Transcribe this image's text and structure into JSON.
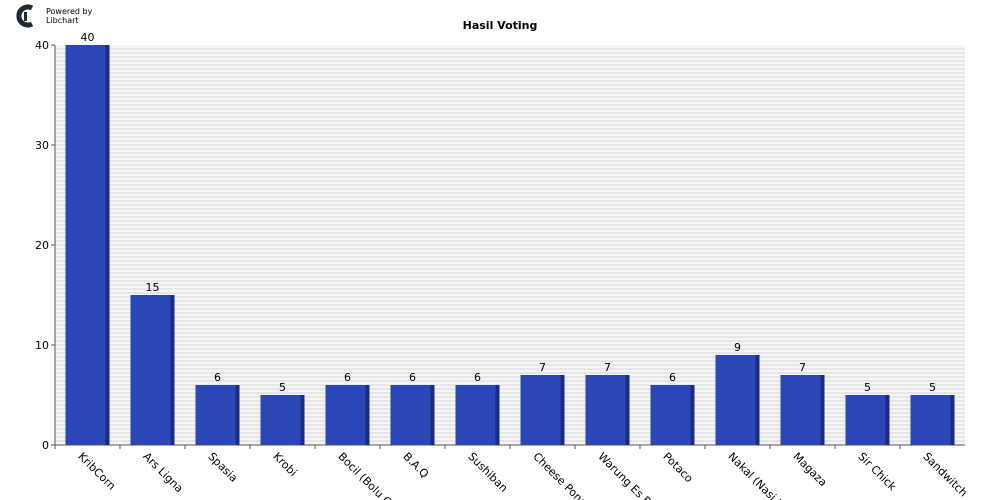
{
  "logo": {
    "line1": "Powered by",
    "line2": "Libchart"
  },
  "colors": {
    "bar": "#2b47b7",
    "bar_side": "#1a2d7d",
    "plot_bg": "#f5f5f5",
    "grid": "#d6d6d6"
  },
  "chart_data": {
    "type": "bar",
    "title": "Hasil Voting",
    "xlabel": "",
    "ylabel": "",
    "ylim": [
      0,
      40
    ],
    "yticks": [
      0,
      10,
      20,
      30,
      40
    ],
    "grid": true,
    "categories": [
      "KribCorn",
      "Ars Ligna",
      "Spasia",
      "Krobi",
      "Bocil (Bolu Co",
      "B.A.Q",
      "Sushiban",
      "Cheese Pong",
      "Warung Es Bu",
      "Potaco",
      "Nakal (Nasi Lo",
      "Magaza",
      "Sir Chick",
      "Sandwitch"
    ],
    "values": [
      40,
      15,
      6,
      5,
      6,
      6,
      6,
      7,
      7,
      6,
      9,
      7,
      5,
      5
    ]
  }
}
